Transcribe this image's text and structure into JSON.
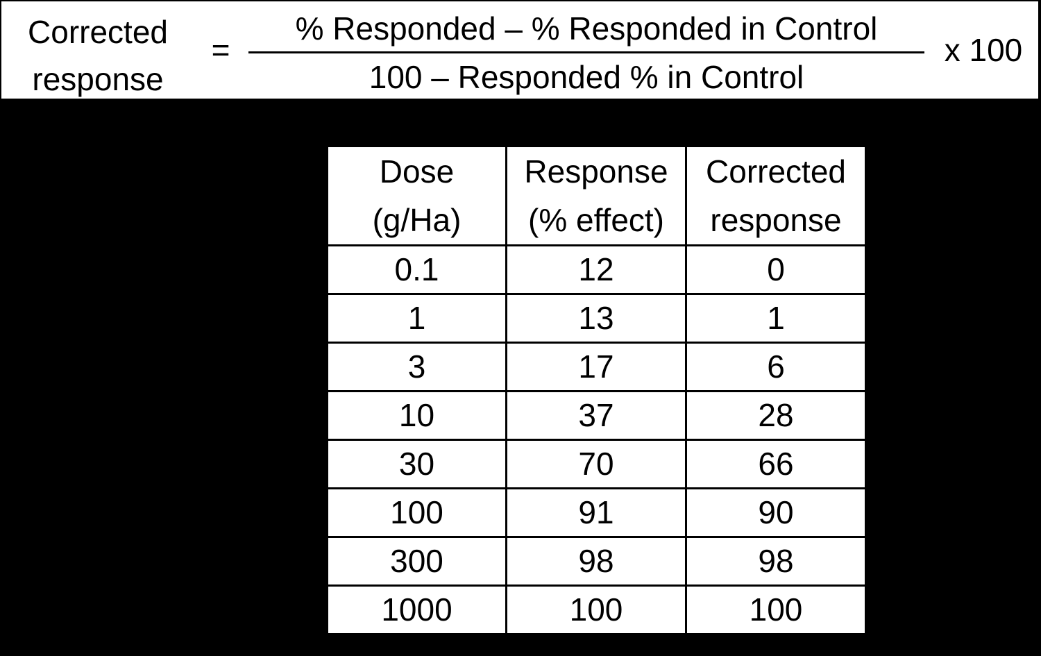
{
  "formula": {
    "lhs_line1": "Corrected",
    "lhs_line2": "response",
    "equals": "=",
    "numerator": "% Responded – % Responded in Control",
    "denominator": "100 – Responded % in Control",
    "multiplier": "x 100"
  },
  "table": {
    "headers": [
      {
        "line1": "Dose",
        "line2": "(g/Ha)"
      },
      {
        "line1": "Response",
        "line2": "(% effect)"
      },
      {
        "line1": "Corrected",
        "line2": "response"
      }
    ],
    "rows": [
      [
        "0.1",
        "12",
        "0"
      ],
      [
        "1",
        "13",
        "1"
      ],
      [
        "3",
        "17",
        "6"
      ],
      [
        "10",
        "37",
        "28"
      ],
      [
        "30",
        "70",
        "66"
      ],
      [
        "100",
        "91",
        "90"
      ],
      [
        "300",
        "98",
        "98"
      ],
      [
        "1000",
        "100",
        "100"
      ]
    ]
  },
  "colors": {
    "background": "#000000",
    "panel": "#ffffff",
    "text": "#000000"
  }
}
